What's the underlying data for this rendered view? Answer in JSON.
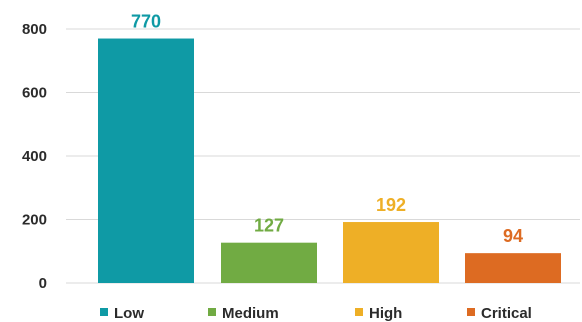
{
  "chart_data": {
    "type": "bar",
    "categories": [
      "Low",
      "Medium",
      "High",
      "Critical"
    ],
    "values": [
      770,
      127,
      192,
      94
    ],
    "data_labels": [
      "770",
      "127",
      "192",
      "94"
    ],
    "colors": [
      "#0f9aa5",
      "#71ab43",
      "#eeaf26",
      "#dd6b22"
    ],
    "ylim": [
      0,
      800
    ],
    "yticks": [
      0,
      200,
      400,
      600,
      800
    ],
    "ytick_labels": [
      "0",
      "200",
      "400",
      "600",
      "800"
    ],
    "grid": true,
    "legend_position": "bottom",
    "title": "",
    "xlabel": "",
    "ylabel": ""
  }
}
